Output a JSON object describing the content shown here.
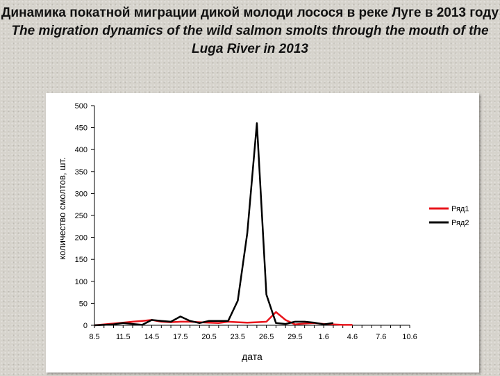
{
  "slide": {
    "title_ru": "Динамика покатной миграции дикой молоди лосося в реке Луге в 2013 году",
    "title_en": "The migration dynamics of the wild salmon smolts through the mouth of the Luga River in 2013"
  },
  "chart_data": {
    "type": "line",
    "title": "",
    "xlabel": "дата",
    "ylabel": "количество смолтов, шт.",
    "ylim": [
      0,
      500
    ],
    "yticks": [
      0,
      50,
      100,
      150,
      200,
      250,
      300,
      350,
      400,
      450,
      500
    ],
    "x_tick_labels": [
      "8.5",
      "11.5",
      "14.5",
      "17.5",
      "20.5",
      "23.5",
      "26.5",
      "29.5",
      "1.6",
      "4.6",
      "7.6",
      "10.6"
    ],
    "x_tick_interval": 3,
    "n_points": 34,
    "grid": false,
    "legend_position": "right",
    "series": [
      {
        "name": "Ряд1",
        "color": "#e8141b",
        "values": [
          0,
          2,
          4,
          6,
          8,
          10,
          12,
          8,
          7,
          8,
          8,
          7,
          6,
          5,
          8,
          7,
          6,
          7,
          8,
          30,
          12,
          2,
          4,
          5,
          3,
          2,
          1,
          1
        ]
      },
      {
        "name": "Ряд2",
        "color": "#000000",
        "values": [
          0,
          1,
          2,
          5,
          3,
          1,
          12,
          10,
          8,
          20,
          10,
          5,
          10,
          10,
          10,
          56,
          210,
          460,
          70,
          5,
          3,
          8,
          8,
          6,
          2,
          5
        ]
      }
    ]
  }
}
